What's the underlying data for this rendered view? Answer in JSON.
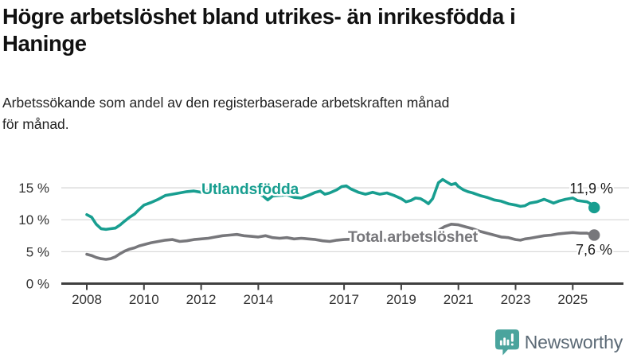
{
  "header": {
    "title": "Högre arbetslöshet bland utrikes- än inrikesfödda i\nHaninge",
    "subtitle": "Arbetssökande som andel av den registerbaserade arbetskraften månad\nför månad."
  },
  "chart_data": {
    "type": "line",
    "title": "Högre arbetslöshet bland utrikes- än inrikesfödda i Haninge",
    "xlabel": "",
    "ylabel": "",
    "x_axis": {
      "unit": "year",
      "range": [
        2008,
        2025.75
      ],
      "ticks": [
        2008,
        2010,
        2012,
        2014,
        2017,
        2019,
        2021,
        2023,
        2025
      ],
      "tick_labels": [
        "2008",
        "2010",
        "2012",
        "2014",
        "2017",
        "2019",
        "2021",
        "2023",
        "2025"
      ]
    },
    "y_axis": {
      "unit": "percent",
      "range": [
        0,
        17
      ],
      "ticks": [
        0,
        5,
        10,
        15
      ],
      "tick_labels": [
        "0 %",
        "5 %",
        "10 %",
        "15 %"
      ],
      "gridlines": true
    },
    "legend_position": "inline-labels-on-lines",
    "series": [
      {
        "name": "Utlandsfödda",
        "color": "#189e90",
        "end_label": "11,9 %",
        "end_value": 11.9,
        "points": [
          [
            2008.0,
            10.8
          ],
          [
            2008.17,
            10.4
          ],
          [
            2008.33,
            9.3
          ],
          [
            2008.5,
            8.6
          ],
          [
            2008.67,
            8.5
          ],
          [
            2008.83,
            8.6
          ],
          [
            2009.0,
            8.7
          ],
          [
            2009.17,
            9.2
          ],
          [
            2009.33,
            9.8
          ],
          [
            2009.5,
            10.4
          ],
          [
            2009.67,
            10.9
          ],
          [
            2009.83,
            11.6
          ],
          [
            2010.0,
            12.3
          ],
          [
            2010.25,
            12.7
          ],
          [
            2010.5,
            13.2
          ],
          [
            2010.75,
            13.8
          ],
          [
            2011.0,
            14.0
          ],
          [
            2011.25,
            14.2
          ],
          [
            2011.5,
            14.4
          ],
          [
            2011.75,
            14.5
          ],
          [
            2012.0,
            14.3
          ],
          [
            2012.25,
            14.6
          ],
          [
            2012.5,
            14.7
          ],
          [
            2012.75,
            14.4
          ],
          [
            2013.0,
            14.6
          ],
          [
            2013.25,
            14.3
          ],
          [
            2013.5,
            14.5
          ],
          [
            2013.75,
            14.0
          ],
          [
            2014.0,
            14.1
          ],
          [
            2014.17,
            13.7
          ],
          [
            2014.33,
            13.1
          ],
          [
            2014.5,
            13.7
          ],
          [
            2014.75,
            13.8
          ],
          [
            2015.0,
            13.9
          ],
          [
            2015.25,
            13.5
          ],
          [
            2015.5,
            13.4
          ],
          [
            2015.75,
            13.8
          ],
          [
            2016.0,
            14.3
          ],
          [
            2016.17,
            14.5
          ],
          [
            2016.33,
            14.0
          ],
          [
            2016.5,
            14.2
          ],
          [
            2016.75,
            14.7
          ],
          [
            2016.92,
            15.2
          ],
          [
            2017.08,
            15.3
          ],
          [
            2017.25,
            14.8
          ],
          [
            2017.5,
            14.3
          ],
          [
            2017.75,
            14.0
          ],
          [
            2018.0,
            14.3
          ],
          [
            2018.25,
            14.0
          ],
          [
            2018.5,
            14.2
          ],
          [
            2018.75,
            13.8
          ],
          [
            2019.0,
            13.3
          ],
          [
            2019.17,
            12.8
          ],
          [
            2019.33,
            13.0
          ],
          [
            2019.5,
            13.4
          ],
          [
            2019.67,
            13.3
          ],
          [
            2019.83,
            12.9
          ],
          [
            2019.95,
            12.5
          ],
          [
            2020.1,
            13.3
          ],
          [
            2020.3,
            15.8
          ],
          [
            2020.45,
            16.3
          ],
          [
            2020.6,
            15.9
          ],
          [
            2020.75,
            15.5
          ],
          [
            2020.9,
            15.7
          ],
          [
            2021.0,
            15.2
          ],
          [
            2021.17,
            14.7
          ],
          [
            2021.33,
            14.4
          ],
          [
            2021.5,
            14.2
          ],
          [
            2021.75,
            13.8
          ],
          [
            2022.0,
            13.5
          ],
          [
            2022.25,
            13.1
          ],
          [
            2022.5,
            12.9
          ],
          [
            2022.75,
            12.5
          ],
          [
            2023.0,
            12.3
          ],
          [
            2023.17,
            12.1
          ],
          [
            2023.33,
            12.2
          ],
          [
            2023.5,
            12.6
          ],
          [
            2023.75,
            12.8
          ],
          [
            2024.0,
            13.2
          ],
          [
            2024.17,
            12.9
          ],
          [
            2024.33,
            12.6
          ],
          [
            2024.5,
            12.9
          ],
          [
            2024.75,
            13.2
          ],
          [
            2025.0,
            13.4
          ],
          [
            2025.17,
            13.0
          ],
          [
            2025.33,
            12.9
          ],
          [
            2025.5,
            12.8
          ],
          [
            2025.62,
            12.5
          ],
          [
            2025.75,
            11.9
          ]
        ]
      },
      {
        "name": "Total arbetslöshet",
        "color": "#77777b",
        "end_label": "7,6 %",
        "end_value": 7.6,
        "points": [
          [
            2008.0,
            4.6
          ],
          [
            2008.17,
            4.4
          ],
          [
            2008.33,
            4.1
          ],
          [
            2008.5,
            3.9
          ],
          [
            2008.67,
            3.8
          ],
          [
            2008.83,
            3.9
          ],
          [
            2009.0,
            4.2
          ],
          [
            2009.17,
            4.7
          ],
          [
            2009.33,
            5.1
          ],
          [
            2009.5,
            5.4
          ],
          [
            2009.67,
            5.6
          ],
          [
            2009.83,
            5.9
          ],
          [
            2010.0,
            6.1
          ],
          [
            2010.25,
            6.4
          ],
          [
            2010.5,
            6.6
          ],
          [
            2010.75,
            6.8
          ],
          [
            2011.0,
            6.9
          ],
          [
            2011.25,
            6.6
          ],
          [
            2011.5,
            6.7
          ],
          [
            2011.75,
            6.9
          ],
          [
            2012.0,
            7.0
          ],
          [
            2012.25,
            7.1
          ],
          [
            2012.5,
            7.3
          ],
          [
            2012.75,
            7.5
          ],
          [
            2013.0,
            7.6
          ],
          [
            2013.25,
            7.7
          ],
          [
            2013.5,
            7.5
          ],
          [
            2013.75,
            7.4
          ],
          [
            2014.0,
            7.3
          ],
          [
            2014.25,
            7.5
          ],
          [
            2014.5,
            7.2
          ],
          [
            2014.75,
            7.1
          ],
          [
            2015.0,
            7.2
          ],
          [
            2015.25,
            7.0
          ],
          [
            2015.5,
            7.1
          ],
          [
            2015.75,
            7.0
          ],
          [
            2016.0,
            6.9
          ],
          [
            2016.25,
            6.7
          ],
          [
            2016.5,
            6.6
          ],
          [
            2016.75,
            6.8
          ],
          [
            2017.0,
            6.9
          ],
          [
            2017.5,
            7.0
          ],
          [
            2018.0,
            6.9
          ],
          [
            2018.5,
            6.8
          ],
          [
            2019.0,
            6.7
          ],
          [
            2019.5,
            6.8
          ],
          [
            2020.0,
            7.1
          ],
          [
            2020.25,
            8.2
          ],
          [
            2020.5,
            8.9
          ],
          [
            2020.75,
            9.3
          ],
          [
            2021.0,
            9.2
          ],
          [
            2021.25,
            8.9
          ],
          [
            2021.5,
            8.6
          ],
          [
            2021.75,
            8.2
          ],
          [
            2022.0,
            7.9
          ],
          [
            2022.25,
            7.6
          ],
          [
            2022.5,
            7.3
          ],
          [
            2022.75,
            7.2
          ],
          [
            2023.0,
            6.9
          ],
          [
            2023.17,
            6.8
          ],
          [
            2023.33,
            7.0
          ],
          [
            2023.5,
            7.1
          ],
          [
            2023.75,
            7.3
          ],
          [
            2024.0,
            7.5
          ],
          [
            2024.25,
            7.6
          ],
          [
            2024.5,
            7.8
          ],
          [
            2024.75,
            7.9
          ],
          [
            2025.0,
            8.0
          ],
          [
            2025.25,
            7.9
          ],
          [
            2025.5,
            7.9
          ],
          [
            2025.75,
            7.6
          ]
        ]
      }
    ]
  },
  "footer": {
    "brand": "Newsworthy",
    "icon": "newsworthy-speech-bubble-bar-chart-icon"
  },
  "colors": {
    "accent_teal": "#189e90",
    "line_gray": "#77777b",
    "grid": "#dadada",
    "axis": "#3f3f3f",
    "tick_text": "#333333",
    "value_text": "#1a1a1a",
    "brand_text": "#5c6a76",
    "brand_icon": "#4aa49d"
  }
}
